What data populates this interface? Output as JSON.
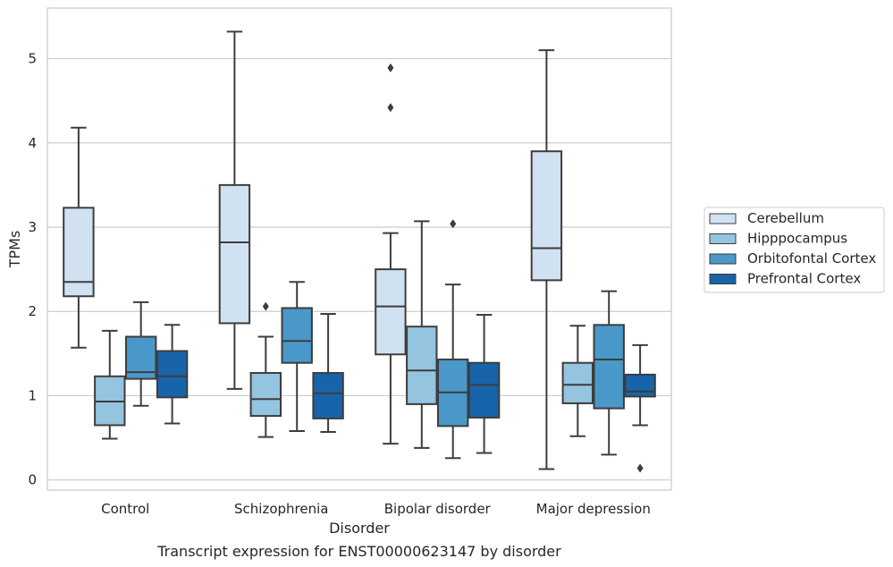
{
  "chart_data": {
    "type": "box",
    "title": "Transcript expression for ENST00000623147 by disorder",
    "xlabel": "Disorder",
    "ylabel": "TPMs",
    "ylim": [
      -0.12,
      5.6
    ],
    "yticks": [
      0,
      1,
      2,
      3,
      4,
      5
    ],
    "grid": true,
    "legend_placement": "right",
    "categories": [
      "Control",
      "Schizophrenia",
      "Bipolar disorder",
      "Major depression"
    ],
    "series": [
      {
        "name": "Cerebellum",
        "color": "#d0e1f2",
        "boxes": [
          {
            "whisker_low": 1.57,
            "q1": 2.18,
            "median": 2.35,
            "q3": 3.23,
            "whisker_high": 4.18,
            "outliers": []
          },
          {
            "whisker_low": 1.08,
            "q1": 1.86,
            "median": 2.82,
            "q3": 3.5,
            "whisker_high": 5.32,
            "outliers": []
          },
          {
            "whisker_low": 0.43,
            "q1": 1.49,
            "median": 2.06,
            "q3": 2.5,
            "whisker_high": 2.93,
            "outliers": [
              4.42,
              4.89
            ]
          },
          {
            "whisker_low": 0.13,
            "q1": 2.37,
            "median": 2.75,
            "q3": 3.9,
            "whisker_high": 5.1,
            "outliers": []
          }
        ]
      },
      {
        "name": "Hipppocampus",
        "color": "#94c4df",
        "boxes": [
          {
            "whisker_low": 0.49,
            "q1": 0.65,
            "median": 0.93,
            "q3": 1.23,
            "whisker_high": 1.77,
            "outliers": []
          },
          {
            "whisker_low": 0.51,
            "q1": 0.76,
            "median": 0.96,
            "q3": 1.27,
            "whisker_high": 1.7,
            "outliers": [
              2.06
            ]
          },
          {
            "whisker_low": 0.38,
            "q1": 0.9,
            "median": 1.3,
            "q3": 1.82,
            "whisker_high": 3.07,
            "outliers": []
          },
          {
            "whisker_low": 0.52,
            "q1": 0.91,
            "median": 1.13,
            "q3": 1.39,
            "whisker_high": 1.83,
            "outliers": []
          }
        ]
      },
      {
        "name": "Orbitofontal Cortex",
        "color": "#4a98c9",
        "boxes": [
          {
            "whisker_low": 0.88,
            "q1": 1.2,
            "median": 1.28,
            "q3": 1.7,
            "whisker_high": 2.11,
            "outliers": []
          },
          {
            "whisker_low": 0.58,
            "q1": 1.39,
            "median": 1.65,
            "q3": 2.04,
            "whisker_high": 2.35,
            "outliers": []
          },
          {
            "whisker_low": 0.26,
            "q1": 0.64,
            "median": 1.04,
            "q3": 1.43,
            "whisker_high": 2.32,
            "outliers": [
              3.04
            ]
          },
          {
            "whisker_low": 0.3,
            "q1": 0.85,
            "median": 1.43,
            "q3": 1.84,
            "whisker_high": 2.24,
            "outliers": []
          }
        ]
      },
      {
        "name": "Prefrontal Cortex",
        "color": "#1764ab",
        "boxes": [
          {
            "whisker_low": 0.67,
            "q1": 0.98,
            "median": 1.23,
            "q3": 1.53,
            "whisker_high": 1.84,
            "outliers": []
          },
          {
            "whisker_low": 0.57,
            "q1": 0.73,
            "median": 1.03,
            "q3": 1.27,
            "whisker_high": 1.97,
            "outliers": []
          },
          {
            "whisker_low": 0.32,
            "q1": 0.74,
            "median": 1.13,
            "q3": 1.39,
            "whisker_high": 1.96,
            "outliers": []
          },
          {
            "whisker_low": 0.65,
            "q1": 0.99,
            "median": 1.05,
            "q3": 1.25,
            "whisker_high": 1.6,
            "outliers": [
              0.14
            ]
          }
        ]
      }
    ]
  }
}
